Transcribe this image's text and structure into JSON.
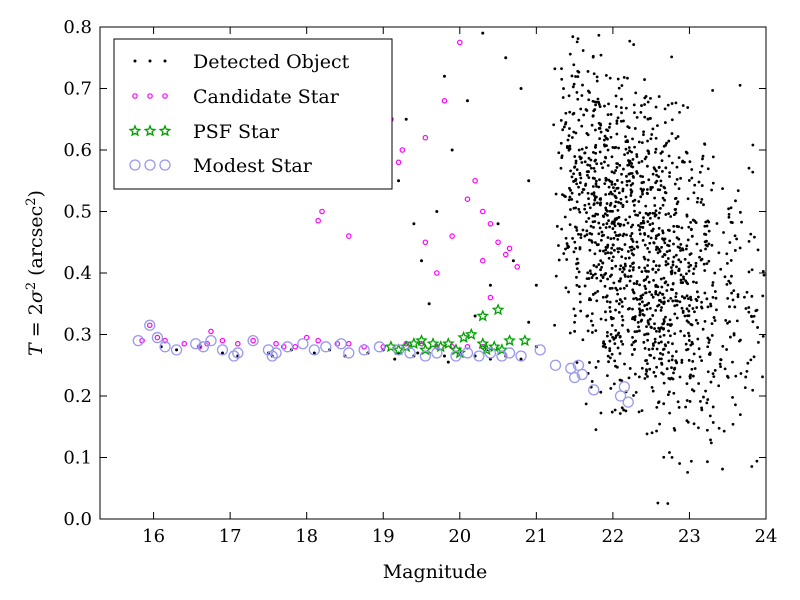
{
  "chart_data": {
    "type": "scatter",
    "xlabel": "Magnitude",
    "ylabel_parts": [
      "T",
      " = 2",
      "σ",
      "2",
      " (arcsec",
      "2",
      ")"
    ],
    "xlim": [
      15.3,
      24
    ],
    "ylim": [
      0.0,
      0.8
    ],
    "xticks": [
      "16",
      "17",
      "18",
      "19",
      "20",
      "21",
      "22",
      "23",
      "24"
    ],
    "yticks": [
      "0.0",
      "0.1",
      "0.2",
      "0.3",
      "0.4",
      "0.5",
      "0.6",
      "0.7",
      "0.8"
    ],
    "legend_position": "top-left",
    "colors": {
      "detected": "#000000",
      "candidate": "#ff00ff",
      "psf": "#00a000",
      "modest": "#9999ee"
    },
    "series": [
      {
        "name": "Detected Object",
        "marker": "dot",
        "description": "dense cloud of galaxy detections, concentrated between magnitude 21 and 24 with T from 0.05 to 0.8; stellar locus near T≈0.28 at bright magnitudes",
        "points": [
          [
            16.1,
            0.28
          ],
          [
            16.3,
            0.275
          ],
          [
            16.6,
            0.28
          ],
          [
            16.9,
            0.27
          ],
          [
            17.1,
            0.265
          ],
          [
            17.5,
            0.27
          ],
          [
            17.55,
            0.265
          ],
          [
            17.8,
            0.275
          ],
          [
            18.1,
            0.27
          ],
          [
            18.3,
            0.275
          ],
          [
            18.5,
            0.265
          ],
          [
            18.8,
            0.27
          ],
          [
            19.0,
            0.275
          ],
          [
            19.2,
            0.27
          ],
          [
            19.4,
            0.265
          ],
          [
            19.6,
            0.27
          ],
          [
            19.8,
            0.265
          ],
          [
            20.0,
            0.27
          ],
          [
            20.2,
            0.265
          ],
          [
            20.4,
            0.26
          ],
          [
            20.6,
            0.265
          ],
          [
            20.8,
            0.26
          ],
          [
            21.0,
            0.28
          ],
          [
            19.15,
            0.26
          ],
          [
            19.45,
            0.27
          ],
          [
            19.85,
            0.255
          ],
          [
            20.35,
            0.275
          ],
          [
            19.0,
            0.6
          ],
          [
            19.3,
            0.65
          ],
          [
            19.8,
            0.72
          ],
          [
            19.5,
            0.42
          ],
          [
            19.7,
            0.5
          ],
          [
            19.2,
            0.55
          ],
          [
            19.9,
            0.6
          ],
          [
            20.1,
            0.68
          ],
          [
            20.3,
            0.79
          ],
          [
            20.6,
            0.75
          ],
          [
            20.8,
            0.7
          ],
          [
            20.9,
            0.55
          ],
          [
            20.5,
            0.48
          ],
          [
            20.7,
            0.42
          ],
          [
            20.4,
            0.38
          ],
          [
            20.2,
            0.33
          ],
          [
            19.6,
            0.35
          ],
          [
            20.9,
            0.32
          ],
          [
            21.0,
            0.38
          ],
          [
            18.7,
            0.72
          ],
          [
            19.1,
            0.62
          ],
          [
            19.4,
            0.48
          ]
        ]
      },
      {
        "name": "Candidate Star",
        "marker": "small-circle",
        "points": [
          [
            15.85,
            0.29
          ],
          [
            15.95,
            0.315
          ],
          [
            16.05,
            0.295
          ],
          [
            16.15,
            0.29
          ],
          [
            16.4,
            0.285
          ],
          [
            16.6,
            0.28
          ],
          [
            16.7,
            0.285
          ],
          [
            16.75,
            0.305
          ],
          [
            16.9,
            0.29
          ],
          [
            17.1,
            0.285
          ],
          [
            17.3,
            0.29
          ],
          [
            17.6,
            0.285
          ],
          [
            17.7,
            0.28
          ],
          [
            17.85,
            0.28
          ],
          [
            18.0,
            0.295
          ],
          [
            18.15,
            0.29
          ],
          [
            18.4,
            0.285
          ],
          [
            18.55,
            0.285
          ],
          [
            18.75,
            0.28
          ],
          [
            19.0,
            0.28
          ],
          [
            19.3,
            0.285
          ],
          [
            19.5,
            0.285
          ],
          [
            19.7,
            0.28
          ],
          [
            19.9,
            0.28
          ],
          [
            20.1,
            0.28
          ],
          [
            20.3,
            0.28
          ],
          [
            18.15,
            0.485
          ],
          [
            18.2,
            0.5
          ],
          [
            18.55,
            0.46
          ],
          [
            19.0,
            0.72
          ],
          [
            19.1,
            0.65
          ],
          [
            19.2,
            0.58
          ],
          [
            19.25,
            0.6
          ],
          [
            19.55,
            0.62
          ],
          [
            19.8,
            0.68
          ],
          [
            19.55,
            0.45
          ],
          [
            19.7,
            0.4
          ],
          [
            19.9,
            0.46
          ],
          [
            20.0,
            0.775
          ],
          [
            20.1,
            0.52
          ],
          [
            20.2,
            0.55
          ],
          [
            20.3,
            0.5
          ],
          [
            20.3,
            0.42
          ],
          [
            20.4,
            0.48
          ],
          [
            20.5,
            0.45
          ],
          [
            20.4,
            0.36
          ],
          [
            20.6,
            0.43
          ],
          [
            20.65,
            0.44
          ],
          [
            20.75,
            0.41
          ]
        ]
      },
      {
        "name": "PSF Star",
        "marker": "star",
        "points": [
          [
            19.1,
            0.28
          ],
          [
            19.2,
            0.275
          ],
          [
            19.3,
            0.28
          ],
          [
            19.4,
            0.285
          ],
          [
            19.5,
            0.29
          ],
          [
            19.55,
            0.275
          ],
          [
            19.65,
            0.285
          ],
          [
            19.75,
            0.28
          ],
          [
            19.85,
            0.285
          ],
          [
            19.95,
            0.275
          ],
          [
            20.05,
            0.295
          ],
          [
            20.15,
            0.3
          ],
          [
            20.3,
            0.285
          ],
          [
            20.35,
            0.275
          ],
          [
            20.45,
            0.28
          ],
          [
            20.55,
            0.275
          ],
          [
            20.65,
            0.29
          ],
          [
            20.85,
            0.29
          ],
          [
            20.3,
            0.33
          ],
          [
            20.5,
            0.34
          ],
          [
            20.0,
            0.27
          ]
        ]
      },
      {
        "name": "Modest Star",
        "marker": "open-circle",
        "points": [
          [
            15.8,
            0.29
          ],
          [
            15.95,
            0.315
          ],
          [
            16.05,
            0.295
          ],
          [
            16.15,
            0.28
          ],
          [
            16.3,
            0.275
          ],
          [
            16.55,
            0.285
          ],
          [
            16.65,
            0.28
          ],
          [
            16.75,
            0.29
          ],
          [
            16.9,
            0.275
          ],
          [
            17.05,
            0.265
          ],
          [
            17.1,
            0.27
          ],
          [
            17.3,
            0.29
          ],
          [
            17.55,
            0.265
          ],
          [
            17.5,
            0.275
          ],
          [
            17.6,
            0.27
          ],
          [
            17.75,
            0.28
          ],
          [
            17.95,
            0.285
          ],
          [
            18.1,
            0.275
          ],
          [
            18.25,
            0.28
          ],
          [
            18.45,
            0.285
          ],
          [
            18.55,
            0.27
          ],
          [
            18.75,
            0.275
          ],
          [
            18.95,
            0.28
          ],
          [
            19.2,
            0.275
          ],
          [
            19.35,
            0.27
          ],
          [
            19.55,
            0.265
          ],
          [
            19.7,
            0.27
          ],
          [
            19.95,
            0.265
          ],
          [
            20.1,
            0.27
          ],
          [
            20.25,
            0.265
          ],
          [
            20.4,
            0.27
          ],
          [
            20.55,
            0.265
          ],
          [
            20.65,
            0.27
          ],
          [
            20.8,
            0.265
          ],
          [
            21.05,
            0.275
          ],
          [
            21.25,
            0.25
          ],
          [
            21.45,
            0.245
          ],
          [
            21.5,
            0.23
          ],
          [
            21.55,
            0.25
          ],
          [
            21.6,
            0.235
          ],
          [
            21.75,
            0.21
          ],
          [
            22.1,
            0.2
          ],
          [
            22.15,
            0.215
          ],
          [
            22.2,
            0.19
          ]
        ]
      }
    ]
  }
}
